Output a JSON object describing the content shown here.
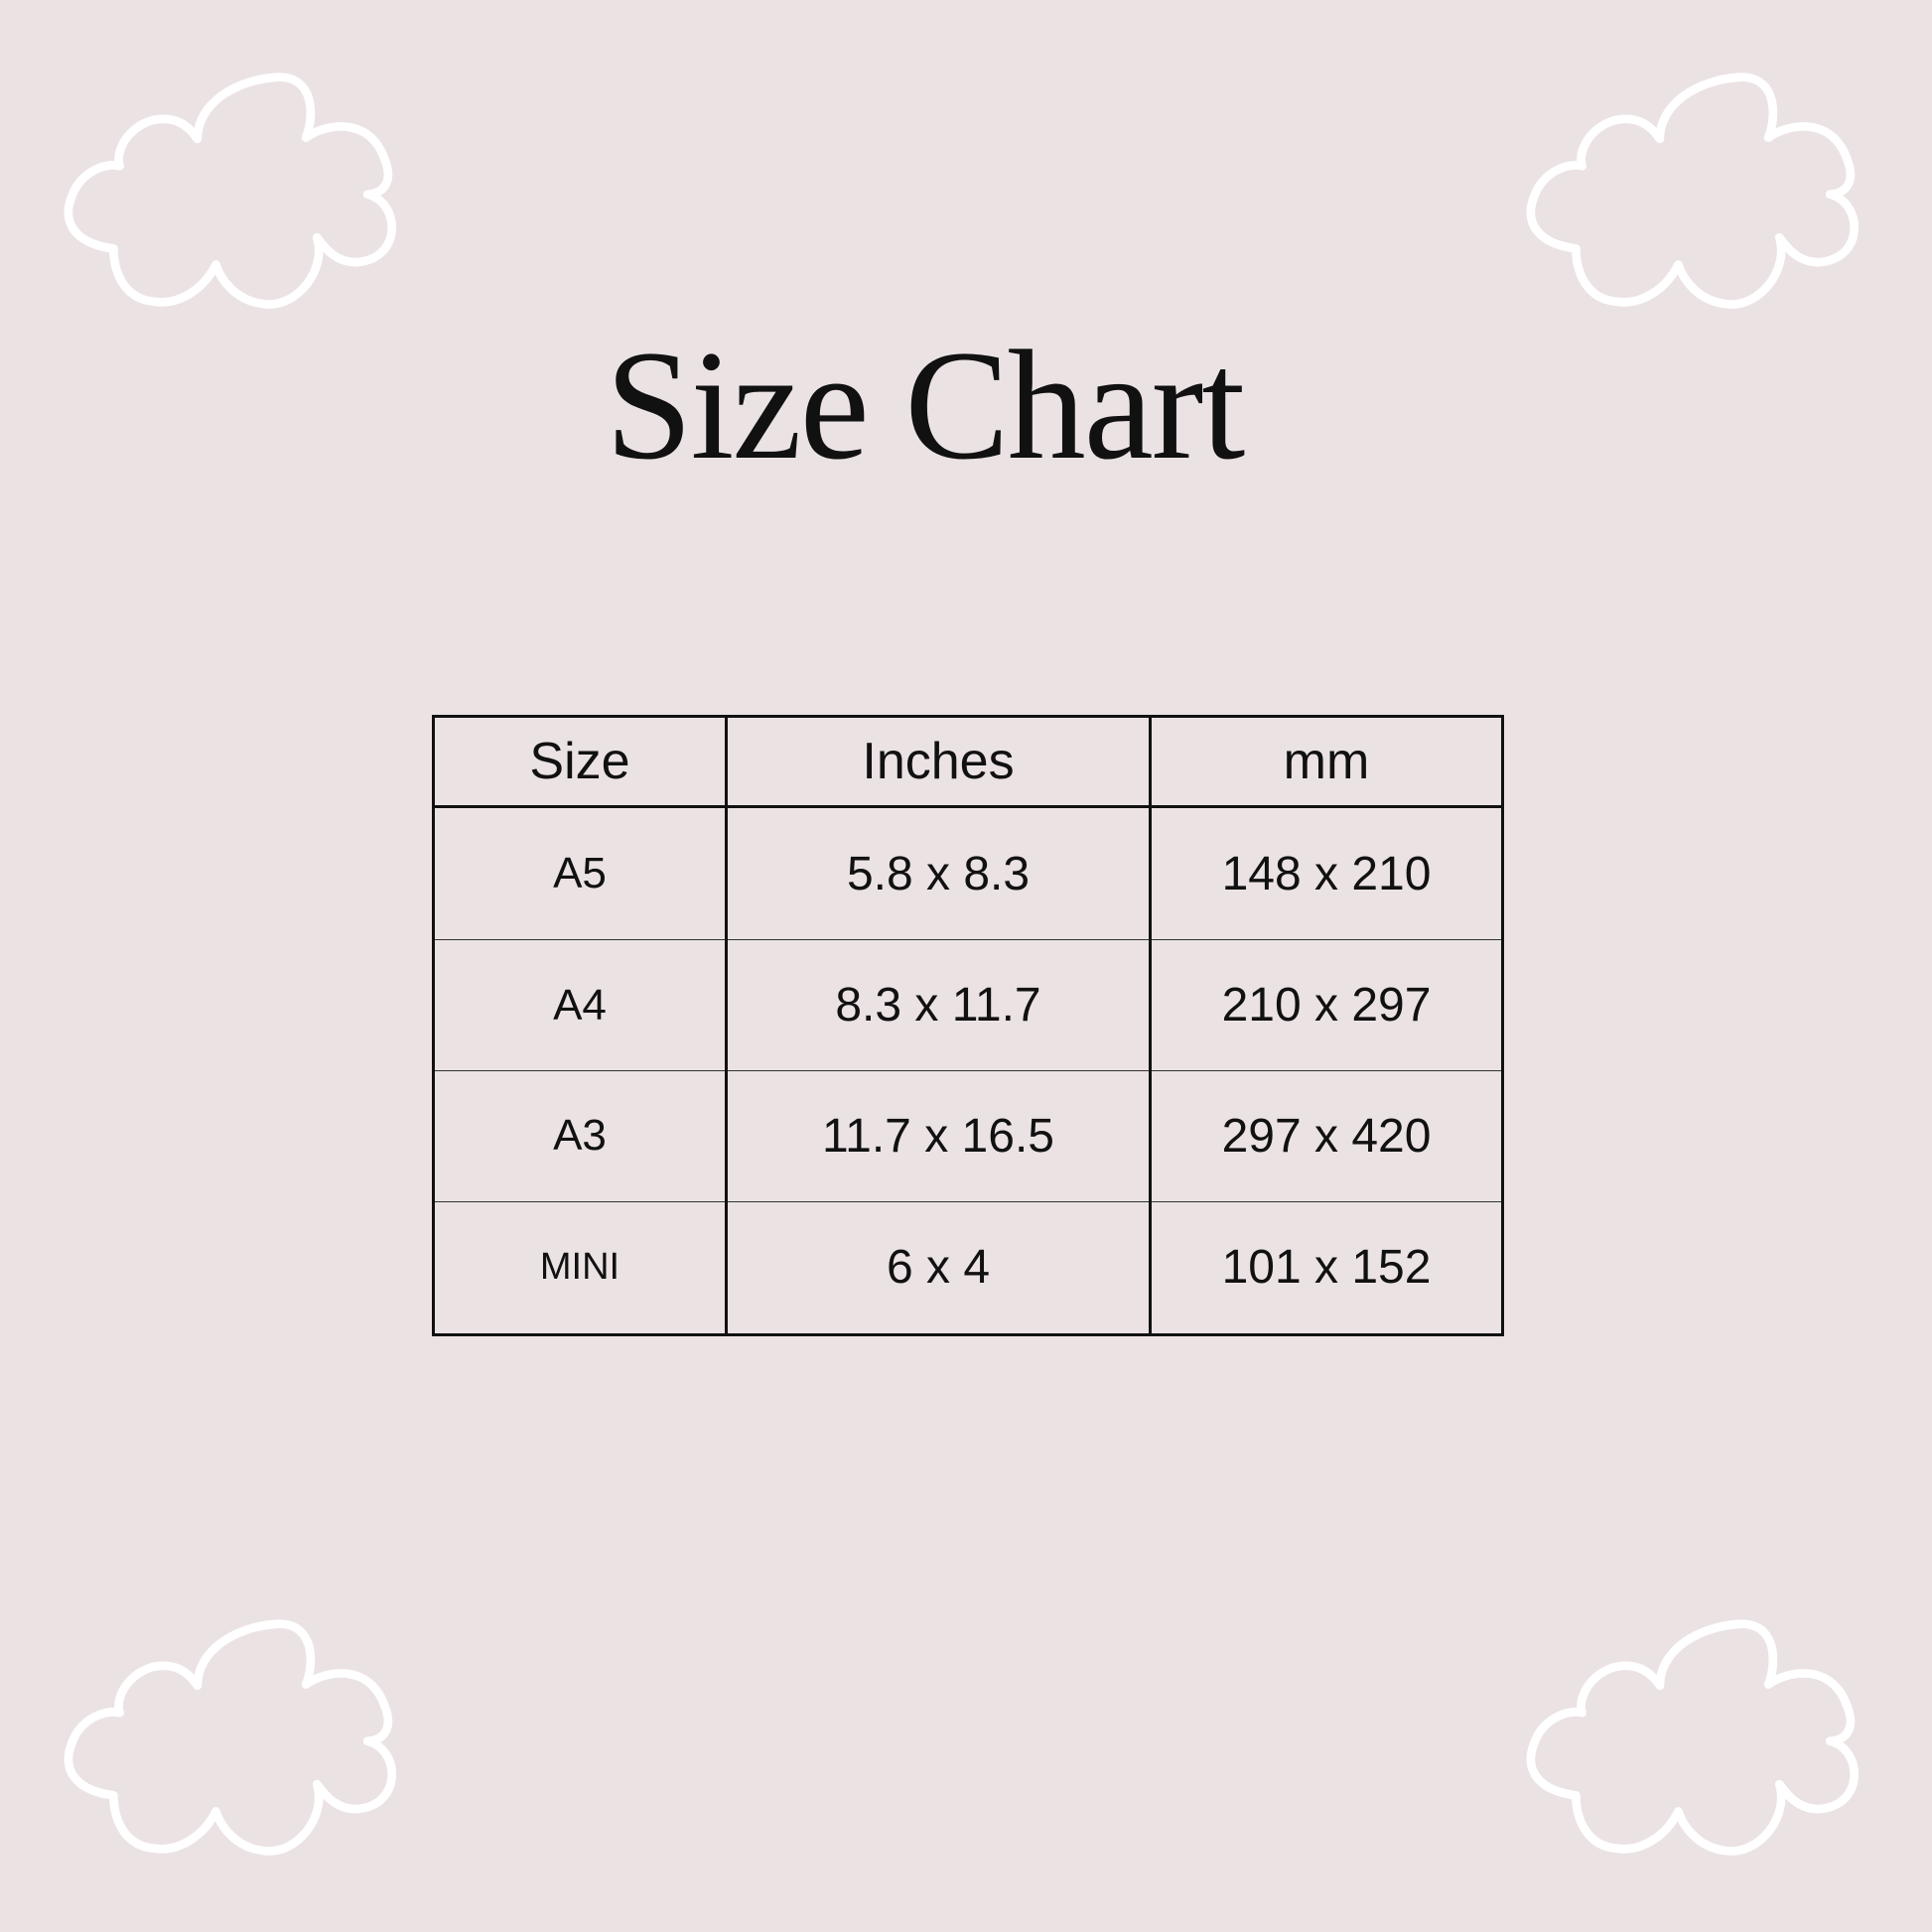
{
  "title": "Size Chart",
  "table": {
    "headers": [
      "Size",
      "Inches",
      "mm"
    ],
    "rows": [
      [
        "A5",
        "5.8 x 8.3",
        "148 x 210"
      ],
      [
        "A4",
        "8.3 x 11.7",
        "210 x 297"
      ],
      [
        "A3",
        "11.7 x 16.5",
        "297 x 420"
      ],
      [
        "MINI",
        "6 x 4",
        "101 x 152"
      ]
    ]
  },
  "colors": {
    "background": "#ebe2e4",
    "cloud_outline": "#ffffff",
    "text": "#111111"
  },
  "decorations": [
    "cloud-icon",
    "cloud-icon",
    "cloud-icon",
    "cloud-icon"
  ]
}
